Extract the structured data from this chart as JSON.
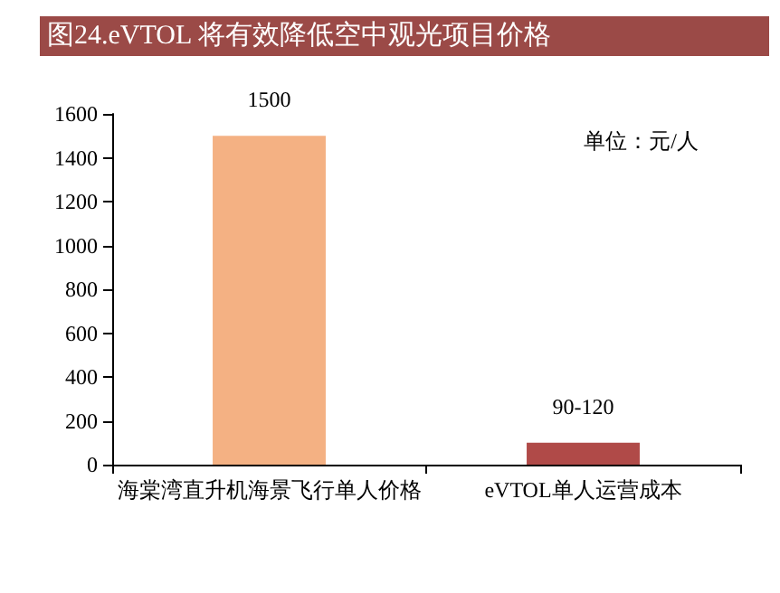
{
  "chart_data": {
    "type": "bar",
    "title": "图24.eVTOL 将有效降低空中观光项目价格",
    "categories": [
      "海棠湾直升机海景飞行单人价格",
      "eVTOL单人运营成本"
    ],
    "values": [
      1500,
      100
    ],
    "colors": [
      "#f4b183",
      "#b04a48"
    ],
    "value_labels": [
      "1500",
      "90-120"
    ],
    "annotations": [
      "单位：元/人"
    ],
    "ylim": [
      0,
      1600
    ],
    "yticks": [
      0,
      200,
      400,
      600,
      800,
      1000,
      1200,
      1400,
      1600
    ],
    "grid": false
  }
}
